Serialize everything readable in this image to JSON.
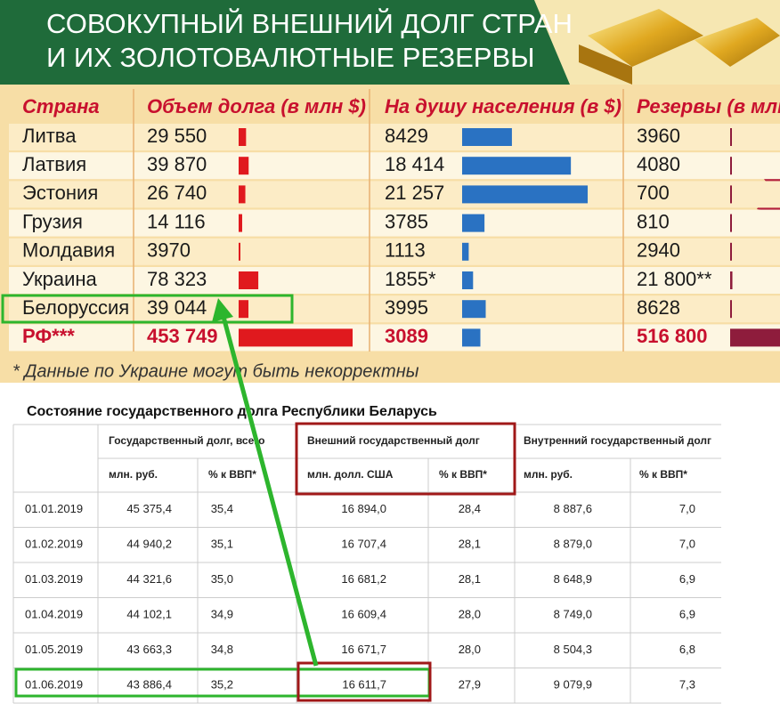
{
  "header": {
    "title_lines": [
      "СОВОКУПНЫЙ ВНЕШНИЙ ДОЛГ СТРАН",
      "И ИХ ЗОЛОТОВАЛЮТНЫЕ РЕЗЕРВЫ"
    ]
  },
  "infographic": {
    "columns": [
      "Страна",
      "Объем долга (в млн $)",
      "На душу населения (в $)",
      "Резервы (в млн $)"
    ],
    "rows": [
      [
        "Литва",
        "29 550",
        "8429",
        "3960"
      ],
      [
        "Латвия",
        "39 870",
        "18 414",
        "4080"
      ],
      [
        "Эстония",
        "26 740",
        "21 257",
        "700"
      ],
      [
        "Грузия",
        "14 116",
        "3785",
        "810"
      ],
      [
        "Молдавия",
        "3970",
        "1113",
        "2940"
      ],
      [
        "Украина",
        "78 323",
        "1855*",
        "21 800**"
      ],
      [
        "Белоруссия",
        "39 044",
        "3995",
        "8628"
      ],
      [
        "РФ***",
        "453 749",
        "3089",
        "516 800"
      ]
    ],
    "footnote": "* Данные по Украине могут быть некорректны"
  },
  "table": {
    "title": "Состояние государственного долга Республики Беларусь",
    "group_headers": [
      "Государственный долг, всего",
      "Внешний государственный долг",
      "Внутренний государственный долг"
    ],
    "sub_headers": [
      "млн. руб.",
      "% к ВВП*",
      "млн. долл. США",
      "% к ВВП*",
      "млн. руб.",
      "% к ВВП*"
    ],
    "rows": [
      [
        "01.01.2019",
        "45 375,4",
        "35,4",
        "16 894,0",
        "28,4",
        "8 887,6",
        "7,0"
      ],
      [
        "01.02.2019",
        "44 940,2",
        "35,1",
        "16 707,4",
        "28,1",
        "8 879,0",
        "7,0"
      ],
      [
        "01.03.2019",
        "44 321,6",
        "35,0",
        "16 681,2",
        "28,1",
        "8 648,9",
        "6,9"
      ],
      [
        "01.04.2019",
        "44 102,1",
        "34,9",
        "16 609,4",
        "28,0",
        "8 749,0",
        "6,9"
      ],
      [
        "01.05.2019",
        "43 663,3",
        "34,8",
        "16 671,7",
        "28,0",
        "8 504,3",
        "6,8"
      ],
      [
        "01.06.2019",
        "43 886,4",
        "35,2",
        "16 611,7",
        "27,9",
        "9 079,9",
        "7,3"
      ]
    ]
  }
}
